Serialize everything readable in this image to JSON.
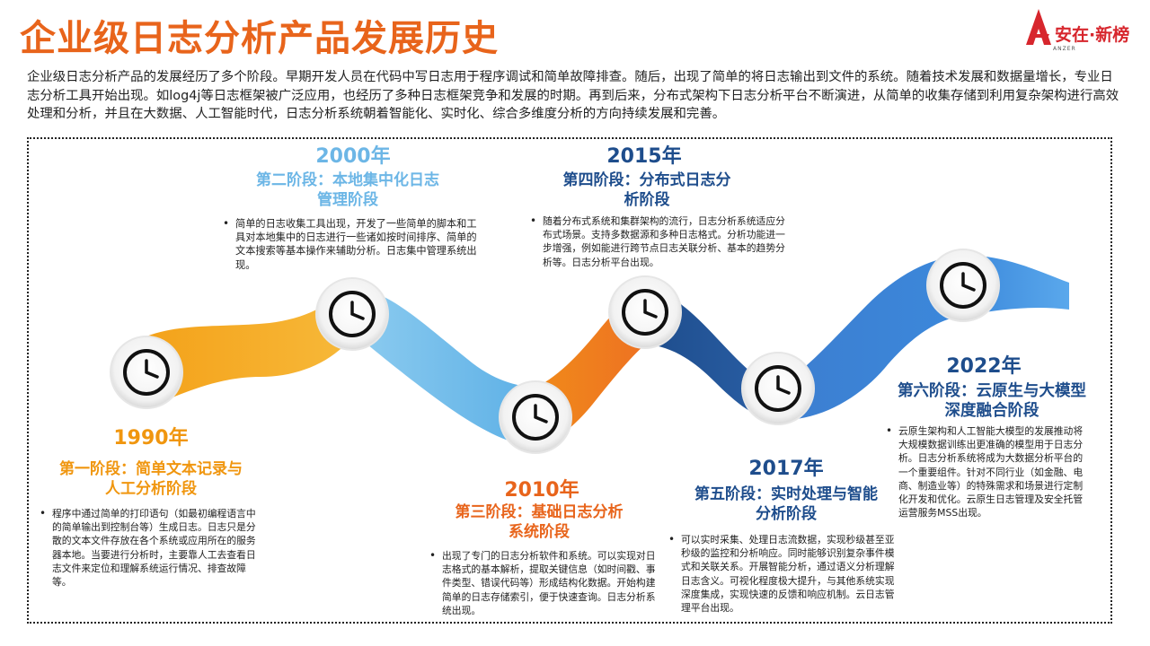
{
  "header": {
    "title": "企业级日志分析产品发展历史",
    "logo_text": "安在·新榜",
    "logo_sub": "ANZER",
    "logo_color": "#D7262D"
  },
  "intro": "企业级日志分析产品的发展经历了多个阶段。早期开发人员在代码中写日志用于程序调试和简单故障排查。随后，出现了简单的将日志输出到文件的系统。随着技术发展和数据量增长，专业日志分析工具开始出现。如log4j等日志框架被广泛应用，也经历了多种日志框架竞争和发展的时期。再到后来，分布式架构下日志分析平台不断演进，从简单的收集存储到利用复杂架构进行高效处理和分析，并且在大数据、人工智能时代，日志分析系统朝着智能化、实时化、综合多维度分析的方向持续发展和完善。",
  "colors": {
    "title": "#E8641B",
    "orange": "#F0960F",
    "light_blue": "#6CB6E6",
    "dark_orange": "#E8641B",
    "navy": "#1E4D8C",
    "blue": "#1F5FA8"
  },
  "stages": [
    {
      "year": "1990年",
      "name": "第一阶段：简单文本记录与人工分析阶段",
      "desc": "程序中通过简单的打印语句（如最初编程语言中的简单输出到控制台等）生成日志。日志只是分散的文本文件存放在各个系统或应用所在的服务器本地。当要进行分析时，主要靠人工去查看日志文件来定位和理解系统运行情况、排查故障等。",
      "icon": "clock-icon"
    },
    {
      "year": "2000年",
      "name": "第二阶段：本地集中化日志管理阶段",
      "desc": "简单的日志收集工具出现，开发了一些简单的脚本和工具对本地集中的日志进行一些诸如按时间排序、简单的文本搜索等基本操作来辅助分析。日志集中管理系统出现。",
      "icon": "clock-icon"
    },
    {
      "year": "2010年",
      "name": "第三阶段：基础日志分析系统阶段",
      "desc": "出现了专门的日志分析软件和系统。可以实现对日志格式的基本解析，提取关键信息（如时间戳、事件类型、错误代码等）形成结构化数据。开始构建简单的日志存储索引，便于快速查询。日志分析系统出现。",
      "icon": "clock-icon"
    },
    {
      "year": "2015年",
      "name": "第四阶段：分布式日志分析阶段",
      "desc": "随着分布式系统和集群架构的流行，日志分析系统适应分布式场景。支持多数据源和多种日志格式。分析功能进一步增强，例如能进行跨节点日志关联分析、基本的趋势分析等。日志分析平台出现。",
      "icon": "clock-icon"
    },
    {
      "year": "2017年",
      "name": "第五阶段：实时处理与智能分析阶段",
      "desc": "可以实时采集、处理日志流数据，实现秒级甚至亚秒级的监控和分析响应。同时能够识别复杂事件模式和关联关系。开展智能分析，通过语义分析理解日志含义。可视化程度极大提升，与其他系统实现深度集成，实现快速的反馈和响应机制。云日志管理平台出现。",
      "icon": "clock-icon"
    },
    {
      "year": "2022年",
      "name": "第六阶段：云原生与大模型深度融合阶段",
      "desc": "云原生架构和人工智能大模型的发展推动将大规模数据训练出更准确的模型用于日志分析。日志分析系统将成为大数据分析平台的一个重要组件。针对不同行业（如金融、电商、制造业等）的特殊需求和场景进行定制化开发和优化。云原生日志管理及安全托管运营服务MSS出现。",
      "icon": "clock-icon"
    }
  ]
}
